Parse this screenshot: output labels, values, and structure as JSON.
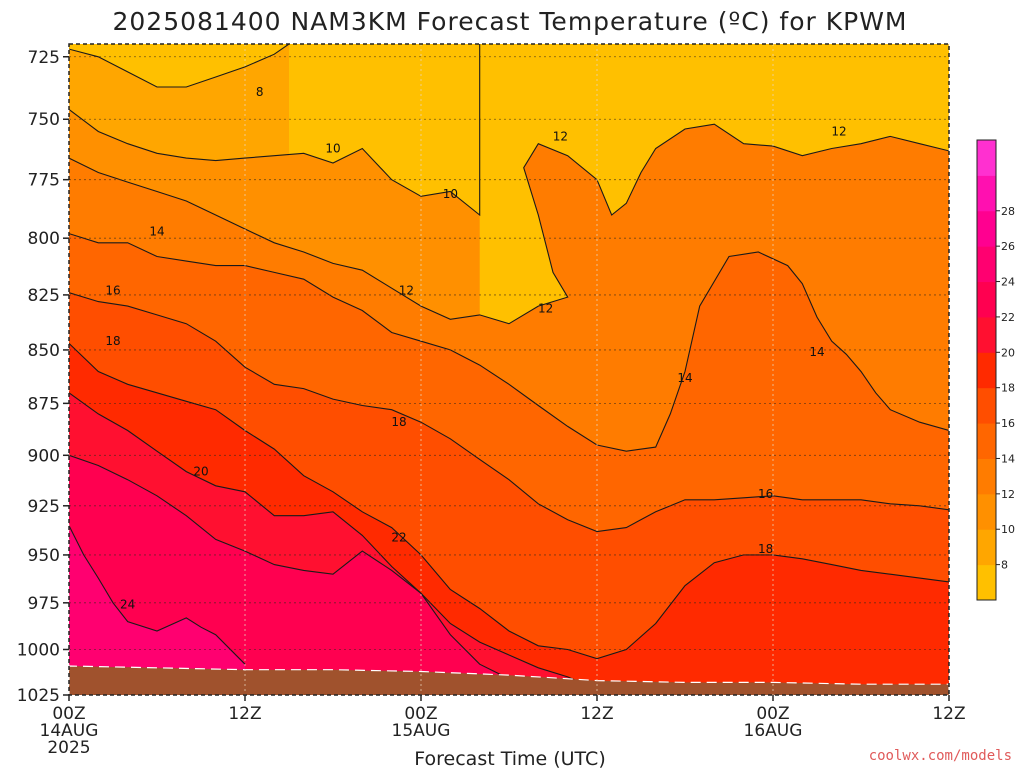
{
  "chart_data": {
    "type": "heatmap",
    "title": "2025081400 NAM3KM Forecast Temperature (ºC) for KPWM",
    "xlabel": "Forecast Time (UTC)",
    "ylabel": "",
    "y_axis": {
      "scale": "log-pressure",
      "inverted": true,
      "range": [
        1025,
        720
      ],
      "ticks": [
        "725",
        "750",
        "775",
        "800",
        "825",
        "850",
        "875",
        "900",
        "925",
        "950",
        "975",
        "1000",
        "1025"
      ]
    },
    "x_axis": {
      "range_hours": [
        0,
        60
      ],
      "ticks": [
        {
          "hour": 0,
          "line1": "00Z",
          "line2": "14AUG",
          "line3": "2025"
        },
        {
          "hour": 12,
          "line1": "12Z",
          "line2": "",
          "line3": ""
        },
        {
          "hour": 24,
          "line1": "00Z",
          "line2": "15AUG",
          "line3": ""
        },
        {
          "hour": 36,
          "line1": "12Z",
          "line2": "",
          "line3": ""
        },
        {
          "hour": 48,
          "line1": "00Z",
          "line2": "16AUG",
          "line3": ""
        },
        {
          "hour": 60,
          "line1": "12Z",
          "line2": "",
          "line3": ""
        }
      ]
    },
    "grid": true,
    "colorbar": {
      "placement": "right",
      "ticks": [
        "8",
        "10",
        "12",
        "14",
        "16",
        "18",
        "20",
        "22",
        "24",
        "26",
        "28"
      ],
      "colors": [
        "#ffc000",
        "#ffa600",
        "#ff9000",
        "#ff7c00",
        "#ff6600",
        "#ff4e00",
        "#ff2a00",
        "#ff1030",
        "#ff0050",
        "#ff0070",
        "#ff0090",
        "#ff10b0",
        "#ff30d0"
      ]
    },
    "contour_levels": [
      8,
      10,
      12,
      14,
      16,
      18,
      20,
      22,
      24
    ],
    "isotherms": [
      {
        "level": 8,
        "points": [
          [
            0,
            722
          ],
          [
            2,
            725
          ],
          [
            4,
            731
          ],
          [
            6,
            737
          ],
          [
            8,
            737
          ],
          [
            10,
            733
          ],
          [
            12,
            729
          ],
          [
            14,
            724
          ],
          [
            15,
            720
          ]
        ]
      },
      {
        "level": 10,
        "points": [
          [
            0,
            746
          ],
          [
            2,
            755
          ],
          [
            4,
            760
          ],
          [
            6,
            764
          ],
          [
            8,
            766
          ],
          [
            10,
            767
          ],
          [
            12,
            766
          ],
          [
            14,
            765
          ],
          [
            16,
            764
          ],
          [
            18,
            768
          ],
          [
            20,
            762
          ],
          [
            22,
            775
          ],
          [
            24,
            782
          ],
          [
            26,
            780
          ],
          [
            28,
            790
          ],
          [
            28,
            720
          ]
        ]
      },
      {
        "level": 12,
        "points": [
          [
            0,
            766
          ],
          [
            2,
            772
          ],
          [
            4,
            776
          ],
          [
            6,
            780
          ],
          [
            8,
            784
          ],
          [
            10,
            790
          ],
          [
            12,
            796
          ],
          [
            14,
            802
          ],
          [
            16,
            806
          ],
          [
            18,
            811
          ],
          [
            20,
            814
          ],
          [
            22,
            822
          ],
          [
            24,
            830
          ],
          [
            26,
            836
          ],
          [
            28,
            834
          ],
          [
            30,
            838
          ],
          [
            32,
            830
          ],
          [
            34,
            826
          ],
          [
            33,
            815
          ],
          [
            32,
            790
          ],
          [
            31,
            770
          ],
          [
            32,
            760
          ],
          [
            34,
            765
          ],
          [
            36,
            775
          ],
          [
            37,
            790
          ],
          [
            38,
            785
          ],
          [
            39,
            772
          ],
          [
            40,
            762
          ],
          [
            42,
            754
          ],
          [
            44,
            752
          ],
          [
            46,
            760
          ],
          [
            48,
            761
          ],
          [
            50,
            765
          ],
          [
            52,
            762
          ],
          [
            54,
            760
          ],
          [
            56,
            757
          ],
          [
            58,
            760
          ],
          [
            60,
            763
          ]
        ]
      },
      {
        "level": 14,
        "points": [
          [
            0,
            798
          ],
          [
            2,
            802
          ],
          [
            4,
            802
          ],
          [
            6,
            808
          ],
          [
            8,
            810
          ],
          [
            10,
            812
          ],
          [
            12,
            812
          ],
          [
            14,
            815
          ],
          [
            16,
            818
          ],
          [
            18,
            826
          ],
          [
            20,
            832
          ],
          [
            22,
            842
          ],
          [
            24,
            846
          ],
          [
            26,
            850
          ],
          [
            28,
            857
          ],
          [
            30,
            866
          ],
          [
            32,
            876
          ],
          [
            34,
            886
          ],
          [
            36,
            895
          ],
          [
            38,
            898
          ],
          [
            40,
            896
          ],
          [
            41,
            880
          ],
          [
            42,
            860
          ],
          [
            43,
            830
          ],
          [
            45,
            808
          ],
          [
            47,
            806
          ],
          [
            49,
            812
          ],
          [
            50,
            820
          ],
          [
            51,
            835
          ],
          [
            52,
            846
          ],
          [
            53,
            852
          ],
          [
            54,
            860
          ],
          [
            55,
            870
          ],
          [
            56,
            878
          ],
          [
            58,
            884
          ],
          [
            60,
            888
          ]
        ]
      },
      {
        "level": 16,
        "points": [
          [
            0,
            824
          ],
          [
            2,
            828
          ],
          [
            4,
            830
          ],
          [
            6,
            834
          ],
          [
            8,
            838
          ],
          [
            10,
            846
          ],
          [
            12,
            858
          ],
          [
            14,
            866
          ],
          [
            16,
            868
          ],
          [
            18,
            873
          ],
          [
            20,
            876
          ],
          [
            22,
            878
          ],
          [
            24,
            884
          ],
          [
            26,
            892
          ],
          [
            28,
            902
          ],
          [
            30,
            912
          ],
          [
            32,
            924
          ],
          [
            34,
            932
          ],
          [
            36,
            938
          ],
          [
            38,
            936
          ],
          [
            40,
            928
          ],
          [
            42,
            922
          ],
          [
            44,
            922
          ],
          [
            46,
            921
          ],
          [
            48,
            920
          ],
          [
            50,
            922
          ],
          [
            52,
            922
          ],
          [
            54,
            922
          ],
          [
            56,
            924
          ],
          [
            58,
            925
          ],
          [
            60,
            927
          ]
        ]
      },
      {
        "level": 18,
        "points": [
          [
            0,
            847
          ],
          [
            2,
            860
          ],
          [
            4,
            866
          ],
          [
            6,
            870
          ],
          [
            8,
            874
          ],
          [
            10,
            878
          ],
          [
            12,
            888
          ],
          [
            14,
            897
          ],
          [
            16,
            910
          ],
          [
            18,
            918
          ],
          [
            20,
            928
          ],
          [
            22,
            936
          ],
          [
            24,
            950
          ],
          [
            26,
            968
          ],
          [
            28,
            978
          ],
          [
            30,
            990
          ],
          [
            32,
            998
          ],
          [
            34,
            1000
          ],
          [
            36,
            1005
          ],
          [
            38,
            1000
          ],
          [
            40,
            986
          ],
          [
            42,
            966
          ],
          [
            44,
            954
          ],
          [
            46,
            950
          ],
          [
            48,
            950
          ],
          [
            50,
            952
          ],
          [
            52,
            955
          ],
          [
            54,
            958
          ],
          [
            56,
            960
          ],
          [
            58,
            962
          ],
          [
            60,
            964
          ]
        ]
      },
      {
        "level": 20,
        "points": [
          [
            0,
            870
          ],
          [
            2,
            880
          ],
          [
            4,
            888
          ],
          [
            6,
            898
          ],
          [
            8,
            908
          ],
          [
            10,
            915
          ],
          [
            12,
            918
          ],
          [
            14,
            930
          ],
          [
            16,
            930
          ],
          [
            18,
            928
          ],
          [
            20,
            940
          ],
          [
            22,
            956
          ],
          [
            24,
            970
          ],
          [
            26,
            986
          ],
          [
            28,
            996
          ],
          [
            30,
            1003
          ],
          [
            32,
            1010
          ],
          [
            34,
            1015
          ],
          [
            36,
            1022
          ]
        ]
      },
      {
        "level": 22,
        "points": [
          [
            0,
            900
          ],
          [
            2,
            905
          ],
          [
            4,
            912
          ],
          [
            6,
            920
          ],
          [
            8,
            930
          ],
          [
            10,
            942
          ],
          [
            12,
            948
          ],
          [
            14,
            955
          ],
          [
            16,
            958
          ],
          [
            18,
            960
          ],
          [
            20,
            948
          ],
          [
            22,
            958
          ],
          [
            24,
            970
          ],
          [
            26,
            992
          ],
          [
            28,
            1008
          ],
          [
            30,
            1016
          ]
        ]
      },
      {
        "level": 24,
        "points": [
          [
            0,
            935
          ],
          [
            1,
            950
          ],
          [
            2,
            962
          ],
          [
            3,
            975
          ],
          [
            4,
            985
          ],
          [
            6,
            990
          ],
          [
            8,
            983
          ],
          [
            9,
            988
          ],
          [
            10,
            992
          ],
          [
            12,
            1008
          ]
        ]
      }
    ],
    "contour_labels": [
      {
        "value": "8",
        "hour": 13,
        "p": 739
      },
      {
        "value": "10",
        "hour": 18,
        "p": 762
      },
      {
        "value": "10",
        "hour": 26,
        "p": 781
      },
      {
        "value": "12",
        "hour": 33.5,
        "p": 757
      },
      {
        "value": "12",
        "hour": 52.5,
        "p": 755
      },
      {
        "value": "12",
        "hour": 23,
        "p": 823
      },
      {
        "value": "12",
        "hour": 32.5,
        "p": 831
      },
      {
        "value": "14",
        "hour": 6,
        "p": 797
      },
      {
        "value": "14",
        "hour": 42,
        "p": 863
      },
      {
        "value": "14",
        "hour": 51,
        "p": 851
      },
      {
        "value": "16",
        "hour": 3,
        "p": 823
      },
      {
        "value": "16",
        "hour": 47.5,
        "p": 919
      },
      {
        "value": "18",
        "hour": 3,
        "p": 846
      },
      {
        "value": "18",
        "hour": 22.5,
        "p": 884
      },
      {
        "value": "18",
        "hour": 47.5,
        "p": 947
      },
      {
        "value": "20",
        "hour": 9,
        "p": 908
      },
      {
        "value": "22",
        "hour": 22.5,
        "p": 941
      },
      {
        "value": "24",
        "hour": 4,
        "p": 976
      }
    ],
    "surface": {
      "color": "#a0522d",
      "points": [
        [
          0,
          1009
        ],
        [
          6,
          1010
        ],
        [
          12,
          1011
        ],
        [
          18,
          1011
        ],
        [
          24,
          1012
        ],
        [
          30,
          1014
        ],
        [
          36,
          1017
        ],
        [
          42,
          1018
        ],
        [
          48,
          1018
        ],
        [
          54,
          1019
        ],
        [
          60,
          1019
        ]
      ]
    }
  },
  "credit": "coolwx.com/models"
}
